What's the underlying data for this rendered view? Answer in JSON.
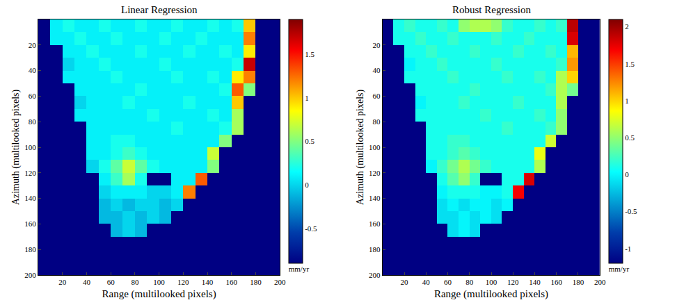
{
  "chart_data": [
    {
      "type": "heatmap",
      "title": "Linear Regression",
      "x_label": "Range (multilooked pixels)",
      "y_label": "Azimuth (multilooked pixels)",
      "x": [
        5,
        15,
        25,
        35,
        45,
        55,
        65,
        75,
        85,
        95,
        105,
        115,
        125,
        135,
        145,
        155,
        165,
        175,
        185,
        195
      ],
      "y": [
        5,
        15,
        25,
        35,
        45,
        55,
        65,
        75,
        85,
        95,
        105,
        115,
        125,
        135,
        145,
        155,
        165,
        175,
        185,
        195
      ],
      "xlim": [
        0,
        200
      ],
      "ylim": [
        200,
        0
      ],
      "xticks": [
        20,
        40,
        60,
        80,
        100,
        120,
        140,
        160,
        180,
        200
      ],
      "yticks": [
        20,
        40,
        60,
        80,
        100,
        120,
        140,
        160,
        180,
        200
      ],
      "color": "Jet",
      "colorbar": {
        "range": [
          -0.9,
          1.9
        ],
        "ticks": [
          -0.5,
          0,
          0.5,
          1,
          1.5
        ],
        "label": "mm/yr"
      },
      "z": [
        [
          -0.9,
          0.1,
          0.2,
          0.1,
          0.1,
          0.2,
          0.1,
          0.1,
          0.2,
          0.1,
          0.1,
          0.2,
          0.1,
          0.1,
          0.2,
          0.1,
          0.2,
          1.0,
          -0.9,
          -0.9
        ],
        [
          -0.9,
          0.1,
          0.1,
          0.2,
          0.1,
          0.1,
          0.2,
          0.1,
          0.1,
          0.1,
          0.2,
          0.1,
          0.1,
          0.2,
          0.1,
          0.1,
          0.1,
          1.2,
          -0.9,
          -0.9
        ],
        [
          -0.9,
          -0.9,
          0.1,
          0.1,
          0.2,
          0.1,
          0.1,
          0.1,
          0.2,
          0.1,
          0.1,
          0.1,
          0.2,
          0.1,
          0.1,
          0.2,
          0.1,
          0.9,
          -0.9,
          -0.9
        ],
        [
          -0.9,
          -0.9,
          0.0,
          0.1,
          0.1,
          0.2,
          0.1,
          0.1,
          0.1,
          0.1,
          0.2,
          0.1,
          0.1,
          0.1,
          0.1,
          0.1,
          0.2,
          1.7,
          -0.9,
          -0.9
        ],
        [
          -0.9,
          -0.9,
          0.1,
          0.1,
          0.1,
          0.1,
          0.2,
          0.1,
          0.1,
          0.1,
          0.1,
          0.2,
          0.1,
          0.1,
          0.2,
          0.1,
          0.9,
          1.2,
          -0.9,
          -0.9
        ],
        [
          -0.9,
          -0.9,
          -0.9,
          0.1,
          0.1,
          0.1,
          0.1,
          0.1,
          0.2,
          0.1,
          0.1,
          0.1,
          0.1,
          0.1,
          0.1,
          0.2,
          1.3,
          0.5,
          -0.9,
          -0.9
        ],
        [
          -0.9,
          -0.9,
          -0.9,
          0.0,
          0.1,
          0.1,
          0.1,
          0.2,
          0.1,
          0.1,
          0.1,
          0.1,
          0.2,
          0.1,
          0.1,
          0.1,
          1.0,
          -0.9,
          -0.9,
          -0.9
        ],
        [
          -0.9,
          -0.9,
          -0.9,
          0.1,
          0.1,
          0.1,
          0.1,
          0.1,
          0.1,
          0.2,
          0.1,
          0.1,
          0.1,
          0.1,
          0.2,
          0.1,
          0.6,
          -0.9,
          -0.9,
          -0.9
        ],
        [
          -0.9,
          -0.9,
          -0.9,
          -0.9,
          0.1,
          0.1,
          0.1,
          0.1,
          0.1,
          0.1,
          0.1,
          0.2,
          0.1,
          0.1,
          0.1,
          0.2,
          0.6,
          -0.9,
          -0.9,
          -0.9
        ],
        [
          -0.9,
          -0.9,
          -0.9,
          -0.9,
          0.1,
          0.1,
          0.2,
          0.2,
          0.1,
          0.1,
          0.1,
          0.1,
          0.1,
          0.1,
          0.1,
          0.5,
          -0.9,
          -0.9,
          -0.9,
          -0.9
        ],
        [
          -0.9,
          -0.9,
          -0.9,
          -0.9,
          0.1,
          0.1,
          0.2,
          0.3,
          0.2,
          0.1,
          0.1,
          0.1,
          0.1,
          0.1,
          0.7,
          -0.9,
          -0.9,
          -0.9,
          -0.9,
          -0.9
        ],
        [
          -0.9,
          -0.9,
          -0.9,
          -0.9,
          0.0,
          0.2,
          0.4,
          0.7,
          0.4,
          0.2,
          0.1,
          0.1,
          0.1,
          0.1,
          0.5,
          -0.9,
          -0.9,
          -0.9,
          -0.9,
          -0.9
        ],
        [
          -0.9,
          -0.9,
          -0.9,
          -0.9,
          -0.9,
          0.1,
          0.3,
          0.6,
          0.2,
          -0.9,
          -0.9,
          0.1,
          0.1,
          1.3,
          -0.9,
          -0.9,
          -0.9,
          -0.9,
          -0.9,
          -0.9
        ],
        [
          -0.9,
          -0.9,
          -0.9,
          -0.9,
          -0.9,
          0.0,
          0.1,
          0.1,
          0.1,
          0.0,
          0.0,
          0.1,
          1.2,
          -0.9,
          -0.9,
          -0.9,
          -0.9,
          -0.9,
          -0.9,
          -0.9
        ],
        [
          -0.9,
          -0.9,
          -0.9,
          -0.9,
          -0.9,
          -0.1,
          0.0,
          -0.1,
          0.0,
          0.0,
          -0.1,
          0.0,
          -0.9,
          -0.9,
          -0.9,
          -0.9,
          -0.9,
          -0.9,
          -0.9,
          -0.9
        ],
        [
          -0.9,
          -0.9,
          -0.9,
          -0.9,
          -0.9,
          -0.1,
          -0.1,
          0.0,
          -0.1,
          0.0,
          -0.1,
          -0.9,
          -0.9,
          -0.9,
          -0.9,
          -0.9,
          -0.9,
          -0.9,
          -0.9,
          -0.9
        ],
        [
          -0.9,
          -0.9,
          -0.9,
          -0.9,
          -0.9,
          -0.9,
          -0.1,
          0.0,
          -0.1,
          -0.9,
          -0.9,
          -0.9,
          -0.9,
          -0.9,
          -0.9,
          -0.9,
          -0.9,
          -0.9,
          -0.9,
          -0.9
        ],
        [
          -0.9,
          -0.9,
          -0.9,
          -0.9,
          -0.9,
          -0.9,
          -0.9,
          -0.9,
          -0.9,
          -0.9,
          -0.9,
          -0.9,
          -0.9,
          -0.9,
          -0.9,
          -0.9,
          -0.9,
          -0.9,
          -0.9,
          -0.9
        ],
        [
          -0.9,
          -0.9,
          -0.9,
          -0.9,
          -0.9,
          -0.9,
          -0.9,
          -0.9,
          -0.9,
          -0.9,
          -0.9,
          -0.9,
          -0.9,
          -0.9,
          -0.9,
          -0.9,
          -0.9,
          -0.9,
          -0.9,
          -0.9
        ],
        [
          -0.9,
          -0.9,
          -0.9,
          -0.9,
          -0.9,
          -0.9,
          -0.9,
          -0.9,
          -0.9,
          -0.9,
          -0.9,
          -0.9,
          -0.9,
          -0.9,
          -0.9,
          -0.9,
          -0.9,
          -0.9,
          -0.9,
          -0.9
        ]
      ]
    },
    {
      "type": "heatmap",
      "title": "Robust Regression",
      "x_label": "Range (multilooked pixels)",
      "y_label": "Azimuth (multilooked pixels)",
      "x": [
        5,
        15,
        25,
        35,
        45,
        55,
        65,
        75,
        85,
        95,
        105,
        115,
        125,
        135,
        145,
        155,
        165,
        175,
        185,
        195
      ],
      "y": [
        5,
        15,
        25,
        35,
        45,
        55,
        65,
        75,
        85,
        95,
        105,
        115,
        125,
        135,
        145,
        155,
        165,
        175,
        185,
        195
      ],
      "xlim": [
        0,
        200
      ],
      "ylim": [
        200,
        0
      ],
      "xticks": [
        20,
        40,
        60,
        80,
        100,
        120,
        140,
        160,
        180,
        200
      ],
      "yticks": [
        20,
        40,
        60,
        80,
        100,
        120,
        140,
        160,
        180,
        200
      ],
      "color": "Jet",
      "colorbar": {
        "range": [
          -1.2,
          2.1
        ],
        "ticks": [
          -1,
          -0.5,
          0,
          0.5,
          1,
          1.5,
          2
        ],
        "label": "mm/yr"
      },
      "z": [
        [
          -1.2,
          0.1,
          0.2,
          0.1,
          0.1,
          0.2,
          0.1,
          0.5,
          0.6,
          0.6,
          0.5,
          0.2,
          0.1,
          0.1,
          0.2,
          0.1,
          0.2,
          1.9,
          -1.2,
          -1.2
        ],
        [
          -1.2,
          0.1,
          0.1,
          0.2,
          0.1,
          0.1,
          0.2,
          0.1,
          0.1,
          0.1,
          0.2,
          0.1,
          0.1,
          0.2,
          0.1,
          0.1,
          0.1,
          1.8,
          -1.2,
          -1.2
        ],
        [
          -1.2,
          -1.2,
          0.1,
          0.1,
          0.2,
          0.1,
          0.1,
          0.1,
          0.2,
          0.1,
          0.1,
          0.1,
          0.2,
          0.1,
          0.1,
          0.2,
          0.1,
          1.1,
          -1.2,
          -1.2
        ],
        [
          -1.2,
          -1.2,
          0.0,
          0.1,
          0.1,
          0.2,
          0.1,
          0.1,
          0.1,
          0.1,
          0.2,
          0.1,
          0.1,
          0.1,
          0.1,
          0.1,
          0.2,
          1.2,
          -1.2,
          -1.2
        ],
        [
          -1.2,
          -1.2,
          0.1,
          0.1,
          0.1,
          0.1,
          0.2,
          0.1,
          0.1,
          0.1,
          0.1,
          0.2,
          0.1,
          0.1,
          0.2,
          0.1,
          0.6,
          1.0,
          -1.2,
          -1.2
        ],
        [
          -1.2,
          -1.2,
          -1.2,
          0.1,
          0.1,
          0.1,
          0.1,
          0.1,
          0.2,
          0.1,
          0.1,
          0.1,
          0.1,
          0.1,
          0.1,
          0.2,
          0.6,
          0.4,
          -1.2,
          -1.2
        ],
        [
          -1.2,
          -1.2,
          -1.2,
          0.0,
          0.1,
          0.1,
          0.1,
          0.2,
          0.1,
          0.1,
          0.1,
          0.1,
          0.2,
          0.1,
          0.1,
          0.1,
          0.6,
          -1.2,
          -1.2,
          -1.2
        ],
        [
          -1.2,
          -1.2,
          -1.2,
          0.1,
          0.1,
          0.1,
          0.1,
          0.1,
          0.1,
          0.2,
          0.1,
          0.1,
          0.1,
          0.1,
          0.2,
          0.1,
          0.5,
          -1.2,
          -1.2,
          -1.2
        ],
        [
          -1.2,
          -1.2,
          -1.2,
          -1.2,
          0.1,
          0.1,
          0.1,
          0.1,
          0.1,
          0.1,
          0.1,
          0.2,
          0.1,
          0.1,
          0.1,
          0.2,
          0.5,
          -1.2,
          -1.2,
          -1.2
        ],
        [
          -1.2,
          -1.2,
          -1.2,
          -1.2,
          0.1,
          0.1,
          0.2,
          0.2,
          0.1,
          0.1,
          0.1,
          0.1,
          0.1,
          0.1,
          0.1,
          0.7,
          -1.2,
          -1.2,
          -1.2,
          -1.2
        ],
        [
          -1.2,
          -1.2,
          -1.2,
          -1.2,
          0.1,
          0.1,
          0.2,
          0.3,
          0.2,
          0.1,
          0.1,
          0.1,
          0.1,
          0.1,
          0.8,
          -1.2,
          -1.2,
          -1.2,
          -1.2,
          -1.2
        ],
        [
          -1.2,
          -1.2,
          -1.2,
          -1.2,
          0.0,
          0.2,
          0.4,
          0.6,
          0.4,
          0.2,
          0.1,
          0.1,
          0.1,
          0.1,
          0.6,
          -1.2,
          -1.2,
          -1.2,
          -1.2,
          -1.2
        ],
        [
          -1.2,
          -1.2,
          -1.2,
          -1.2,
          -1.2,
          0.1,
          0.3,
          0.5,
          0.2,
          -1.2,
          -1.2,
          0.1,
          0.1,
          1.8,
          -1.2,
          -1.2,
          -1.2,
          -1.2,
          -1.2,
          -1.2
        ],
        [
          -1.2,
          -1.2,
          -1.2,
          -1.2,
          -1.2,
          0.0,
          0.1,
          0.1,
          0.1,
          0.0,
          0.0,
          0.1,
          1.7,
          -1.2,
          -1.2,
          -1.2,
          -1.2,
          -1.2,
          -1.2,
          -1.2
        ],
        [
          -1.2,
          -1.2,
          -1.2,
          -1.2,
          -1.2,
          -0.1,
          0.0,
          -0.1,
          0.0,
          0.0,
          -0.1,
          0.0,
          -1.2,
          -1.2,
          -1.2,
          -1.2,
          -1.2,
          -1.2,
          -1.2,
          -1.2
        ],
        [
          -1.2,
          -1.2,
          -1.2,
          -1.2,
          -1.2,
          -0.1,
          -0.1,
          0.0,
          -0.1,
          0.0,
          -0.1,
          -1.2,
          -1.2,
          -1.2,
          -1.2,
          -1.2,
          -1.2,
          -1.2,
          -1.2,
          -1.2
        ],
        [
          -1.2,
          -1.2,
          -1.2,
          -1.2,
          -1.2,
          -1.2,
          -0.1,
          0.0,
          -0.1,
          -1.2,
          -1.2,
          -1.2,
          -1.2,
          -1.2,
          -1.2,
          -1.2,
          -1.2,
          -1.2,
          -1.2,
          -1.2
        ],
        [
          -1.2,
          -1.2,
          -1.2,
          -1.2,
          -1.2,
          -1.2,
          -1.2,
          -1.2,
          -1.2,
          -1.2,
          -1.2,
          -1.2,
          -1.2,
          -1.2,
          -1.2,
          -1.2,
          -1.2,
          -1.2,
          -1.2,
          -1.2
        ],
        [
          -1.2,
          -1.2,
          -1.2,
          -1.2,
          -1.2,
          -1.2,
          -1.2,
          -1.2,
          -1.2,
          -1.2,
          -1.2,
          -1.2,
          -1.2,
          -1.2,
          -1.2,
          -1.2,
          -1.2,
          -1.2,
          -1.2,
          -1.2
        ],
        [
          -1.2,
          -1.2,
          -1.2,
          -1.2,
          -1.2,
          -1.2,
          -1.2,
          -1.2,
          -1.2,
          -1.2,
          -1.2,
          -1.2,
          -1.2,
          -1.2,
          -1.2,
          -1.2,
          -1.2,
          -1.2,
          -1.2,
          -1.2
        ]
      ]
    }
  ]
}
